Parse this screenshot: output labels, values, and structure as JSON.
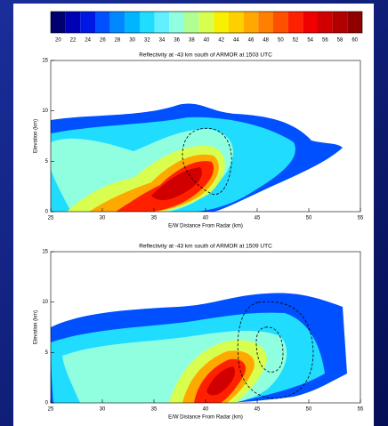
{
  "colorbar": {
    "ticks": [
      20,
      22,
      24,
      26,
      28,
      30,
      32,
      34,
      36,
      38,
      40,
      42,
      44,
      46,
      48,
      50,
      52,
      54,
      56,
      58,
      60
    ],
    "colors": [
      "#00006e",
      "#0000b4",
      "#0018e6",
      "#0050ff",
      "#0088ff",
      "#00b4ff",
      "#20dcff",
      "#60f0ff",
      "#90ffe0",
      "#b0ff90",
      "#d8ff50",
      "#f8f000",
      "#ffd000",
      "#ffa800",
      "#ff8000",
      "#ff5000",
      "#ff2000",
      "#f00000",
      "#d00000",
      "#b00000",
      "#900000"
    ]
  },
  "chart_data": [
    {
      "type": "contour",
      "title": "Reflectivity at -43 km south of ARMOR at 1503 UTC",
      "x_label": "E/W Distance From Radar (km)",
      "y_label": "Elevation (km)",
      "xlim": [
        25,
        55
      ],
      "ylim": [
        0,
        15
      ],
      "xticks": [
        25,
        30,
        35,
        40,
        45,
        50,
        55
      ],
      "yticks": [
        0,
        5,
        10,
        15
      ]
    },
    {
      "type": "contour",
      "title": "Reflectivity at -43 km south of ARMOR at 1509 UTC",
      "x_label": "E/W Distance From Radar (km)",
      "y_label": "Elevation (km)",
      "xlim": [
        25,
        55
      ],
      "ylim": [
        0,
        15
      ],
      "xticks": [
        25,
        30,
        35,
        40,
        45,
        50,
        55
      ],
      "yticks": [
        0,
        5,
        10,
        15
      ]
    }
  ]
}
